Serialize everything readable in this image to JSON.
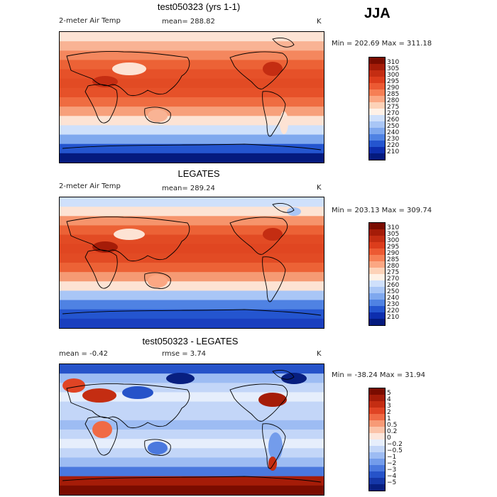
{
  "season": "JJA",
  "panels": [
    {
      "id": "model",
      "title": "test050323 (yrs 1-1)",
      "variable": "2-meter Air Temp",
      "stat_line": "mean= 288.82",
      "units": "K",
      "minmax": "Min = 202.69 Max = 311.18",
      "colorbar": {
        "labels": [
          "310",
          "305",
          "300",
          "295",
          "290",
          "285",
          "280",
          "275",
          "270",
          "260",
          "250",
          "240",
          "230",
          "220",
          "210"
        ],
        "colors": [
          "#7a0c00",
          "#a51c08",
          "#c42d12",
          "#dc3d1c",
          "#ec5a33",
          "#f67f55",
          "#fba783",
          "#fdd2b8",
          "#fff1e6",
          "#cfe0fb",
          "#a9c6f6",
          "#7fa8ee",
          "#4f82e3",
          "#2455cf",
          "#0d2eae",
          "#041a7e"
        ]
      },
      "map_fill": "#e84e27",
      "bands": [
        {
          "color": "#fde3d4"
        },
        {
          "color": "#f9b394"
        },
        {
          "color": "#f4875e"
        },
        {
          "color": "#ec6236"
        },
        {
          "color": "#e65129"
        },
        {
          "color": "#e24b24"
        },
        {
          "color": "#e65129"
        },
        {
          "color": "#ef6c41"
        },
        {
          "color": "#f7a07b"
        },
        {
          "color": "#fde3d4"
        },
        {
          "color": "#cfe0fb"
        },
        {
          "color": "#7fa8ee"
        },
        {
          "color": "#2455cf"
        },
        {
          "color": "#041a7e"
        }
      ]
    },
    {
      "id": "obs",
      "title": "LEGATES",
      "variable": "2-meter Air Temp",
      "stat_line": "mean= 289.24",
      "units": "K",
      "minmax": "Min = 203.13 Max = 309.74",
      "colorbar": {
        "labels": [
          "310",
          "305",
          "300",
          "295",
          "290",
          "285",
          "280",
          "275",
          "270",
          "260",
          "250",
          "240",
          "230",
          "220",
          "210"
        ],
        "colors": [
          "#7a0c00",
          "#a51c08",
          "#c42d12",
          "#dc3d1c",
          "#ec5a33",
          "#f67f55",
          "#fba783",
          "#fdd2b8",
          "#fff1e6",
          "#cfe0fb",
          "#a9c6f6",
          "#7fa8ee",
          "#4f82e3",
          "#2455cf",
          "#0d2eae",
          "#041a7e"
        ]
      },
      "map_fill": "#e84e27",
      "bands": [
        {
          "color": "#cfe0fb"
        },
        {
          "color": "#fde3d4"
        },
        {
          "color": "#f6946c"
        },
        {
          "color": "#ec6236"
        },
        {
          "color": "#e24b24"
        },
        {
          "color": "#e04621"
        },
        {
          "color": "#e24b24"
        },
        {
          "color": "#ec6236"
        },
        {
          "color": "#f59a74"
        },
        {
          "color": "#fde3d4"
        },
        {
          "color": "#a9c6f6"
        },
        {
          "color": "#4f82e3"
        },
        {
          "color": "#2455cf"
        },
        {
          "color": "#1a3fbf"
        }
      ]
    },
    {
      "id": "diff",
      "title": "test050323 - LEGATES",
      "stat_line": "mean =   -0.42",
      "stat_line2": "rmse =    3.74",
      "units": "K",
      "minmax": "Min = -38.24 Max =  31.94",
      "colorbar": {
        "labels": [
          "5",
          "4",
          "3",
          "2",
          "1",
          "0.5",
          "0.2",
          "0",
          "−0.2",
          "−0.5",
          "−1",
          "−2",
          "−3",
          "−4",
          "−5"
        ],
        "colors": [
          "#7a0c00",
          "#a51c08",
          "#c42d12",
          "#e04424",
          "#f06a45",
          "#f79a76",
          "#fbc3a8",
          "#fde6db",
          "#e6eefc",
          "#c3d6f8",
          "#9dbcf3",
          "#739ceb",
          "#4a78de",
          "#2653c9",
          "#1537a8",
          "#081f80"
        ]
      },
      "map_fill": "#b8cdf5",
      "bands": [
        {
          "color": "#2653c9"
        },
        {
          "color": "#9dbcf3"
        },
        {
          "color": "#c3d6f8"
        },
        {
          "color": "#e6eefc"
        },
        {
          "color": "#c3d6f8"
        },
        {
          "color": "#c3d6f8"
        },
        {
          "color": "#9dbcf3"
        },
        {
          "color": "#c3d6f8"
        },
        {
          "color": "#e6eefc"
        },
        {
          "color": "#c3d6f8"
        },
        {
          "color": "#9dbcf3"
        },
        {
          "color": "#4a78de"
        },
        {
          "color": "#a51c08"
        },
        {
          "color": "#7a0c00"
        }
      ]
    }
  ]
}
